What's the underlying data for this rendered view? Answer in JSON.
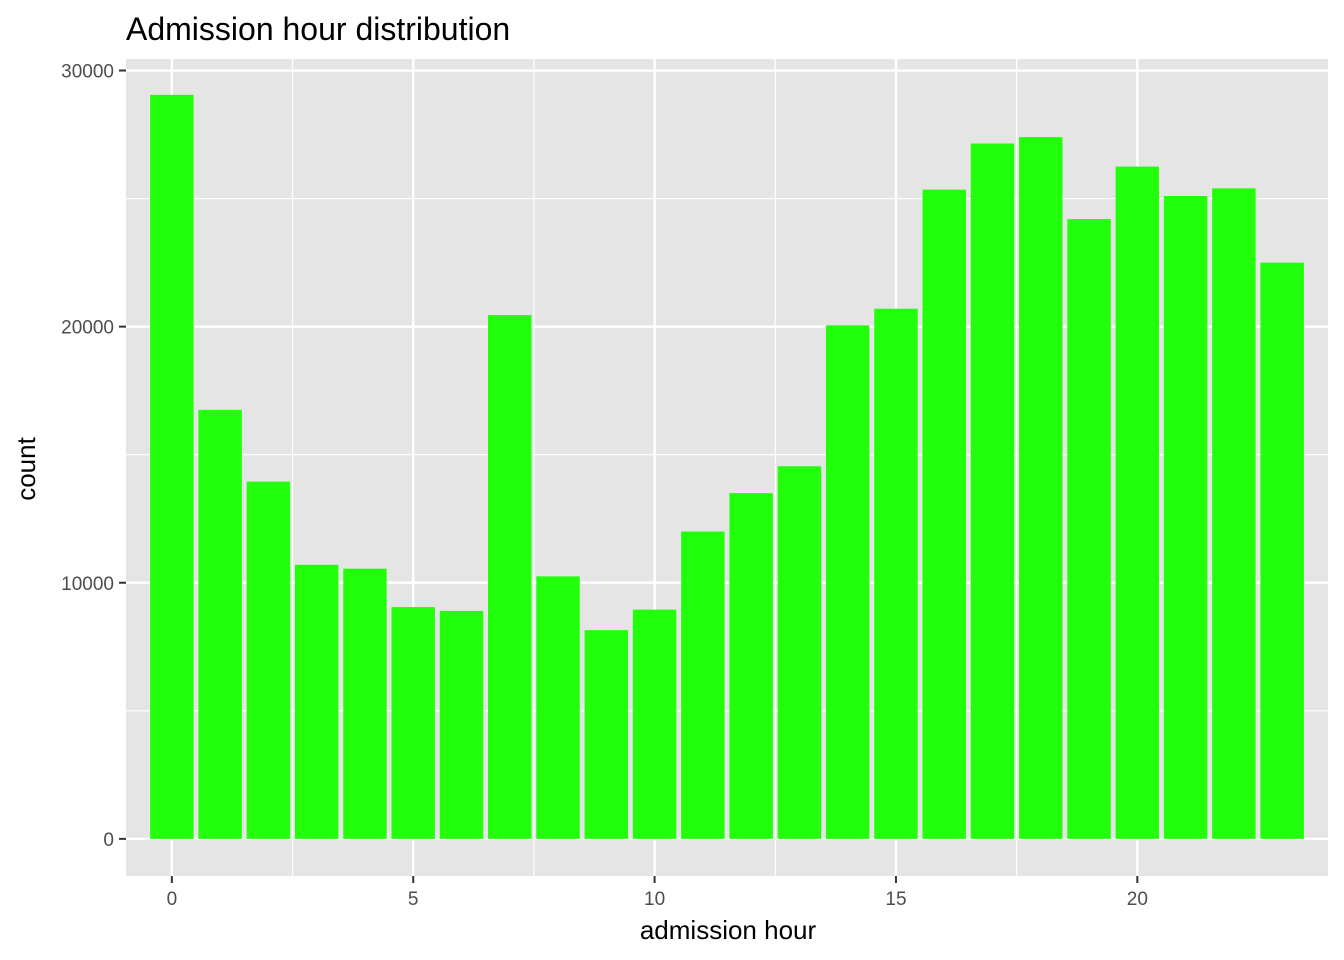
{
  "chart_data": {
    "type": "bar",
    "title": "Admission hour distribution",
    "xlabel": "admission hour",
    "ylabel": "count",
    "x": [
      0,
      1,
      2,
      3,
      4,
      5,
      6,
      7,
      8,
      9,
      10,
      11,
      12,
      13,
      14,
      15,
      16,
      17,
      18,
      19,
      20,
      21,
      22,
      23
    ],
    "values": [
      29050,
      16750,
      13950,
      10700,
      10550,
      9050,
      8900,
      20450,
      10250,
      8150,
      8950,
      12000,
      13500,
      14550,
      20050,
      20700,
      25350,
      27150,
      27400,
      24200,
      26250,
      25100,
      25400,
      22500
    ],
    "xticks": [
      0,
      5,
      10,
      15,
      20
    ],
    "xtick_labels": [
      "0",
      "5",
      "10",
      "15",
      "20"
    ],
    "yticks": [
      0,
      10000,
      20000,
      30000
    ],
    "ytick_labels": [
      "0",
      "10000",
      "20000",
      "30000"
    ],
    "xlim": [
      -0.95,
      23.95
    ],
    "ylim": [
      -1450,
      30450
    ],
    "bar_color": "#22ff0a",
    "panel_bg": "#e5e5e5",
    "grid": true
  }
}
